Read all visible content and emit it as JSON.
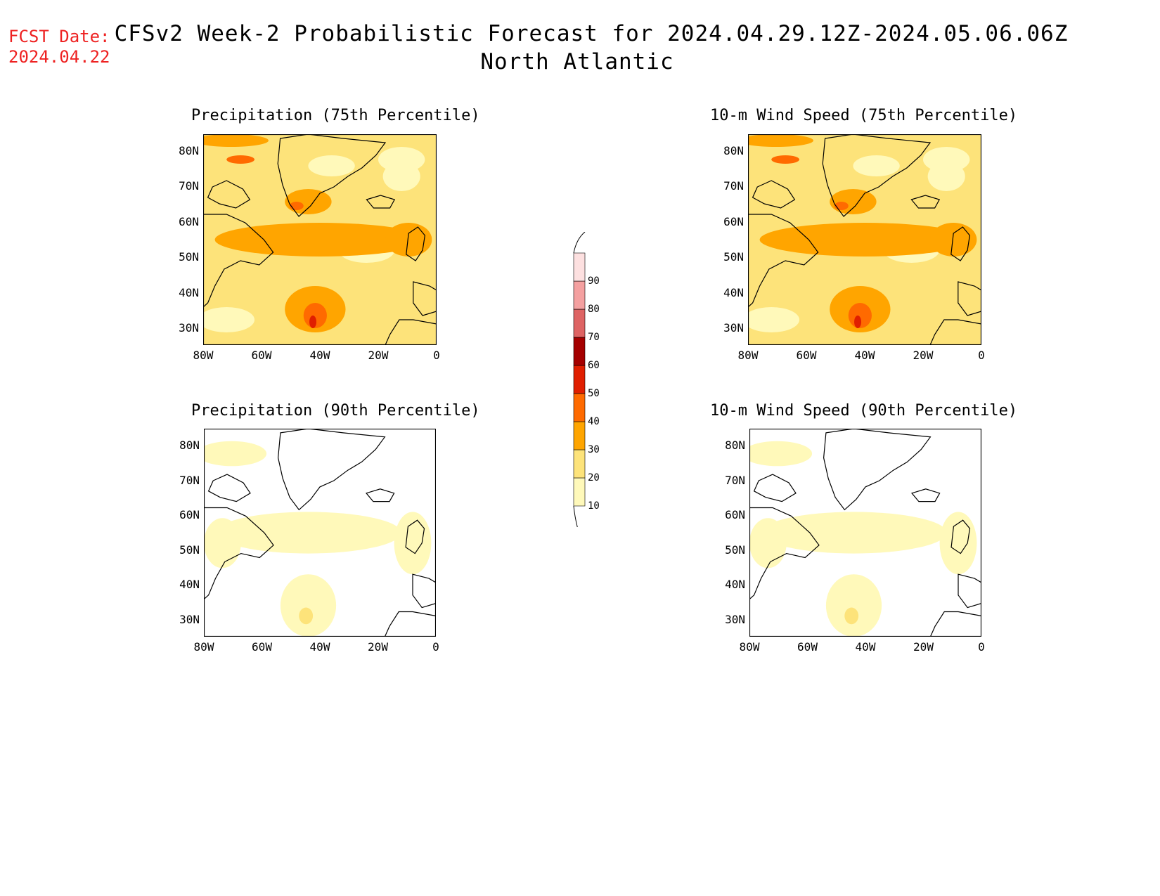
{
  "fcst": {
    "line1": "FCST Date:",
    "line2": "2024.04.22"
  },
  "title": {
    "main": "CFSv2 Week-2 Probabilistic Forecast for 2024.04.29.12Z-2024.05.06.06Z",
    "region": "North Atlantic"
  },
  "panels": [
    {
      "title": "Precipitation (75th Percentile)",
      "level": "high"
    },
    {
      "title": "10-m Wind Speed (75th Percentile)",
      "level": "high"
    },
    {
      "title": "Precipitation (90th Percentile)",
      "level": "low"
    },
    {
      "title": "10-m Wind Speed (90th Percentile)",
      "level": "low"
    }
  ],
  "axes": {
    "lat_ticks": [
      "80N",
      "70N",
      "60N",
      "50N",
      "40N",
      "30N"
    ],
    "lon_ticks": [
      "80W",
      "60W",
      "40W",
      "20W",
      "0"
    ]
  },
  "colorbar": {
    "levels": [
      "10",
      "20",
      "30",
      "40",
      "50",
      "60",
      "70",
      "80",
      "90"
    ],
    "colors": [
      "#fff9ba",
      "#fde37a",
      "#ffa500",
      "#ff6a00",
      "#e01e00",
      "#a50000",
      "#de6464",
      "#f4a0a0",
      "#fde0e0"
    ]
  }
}
